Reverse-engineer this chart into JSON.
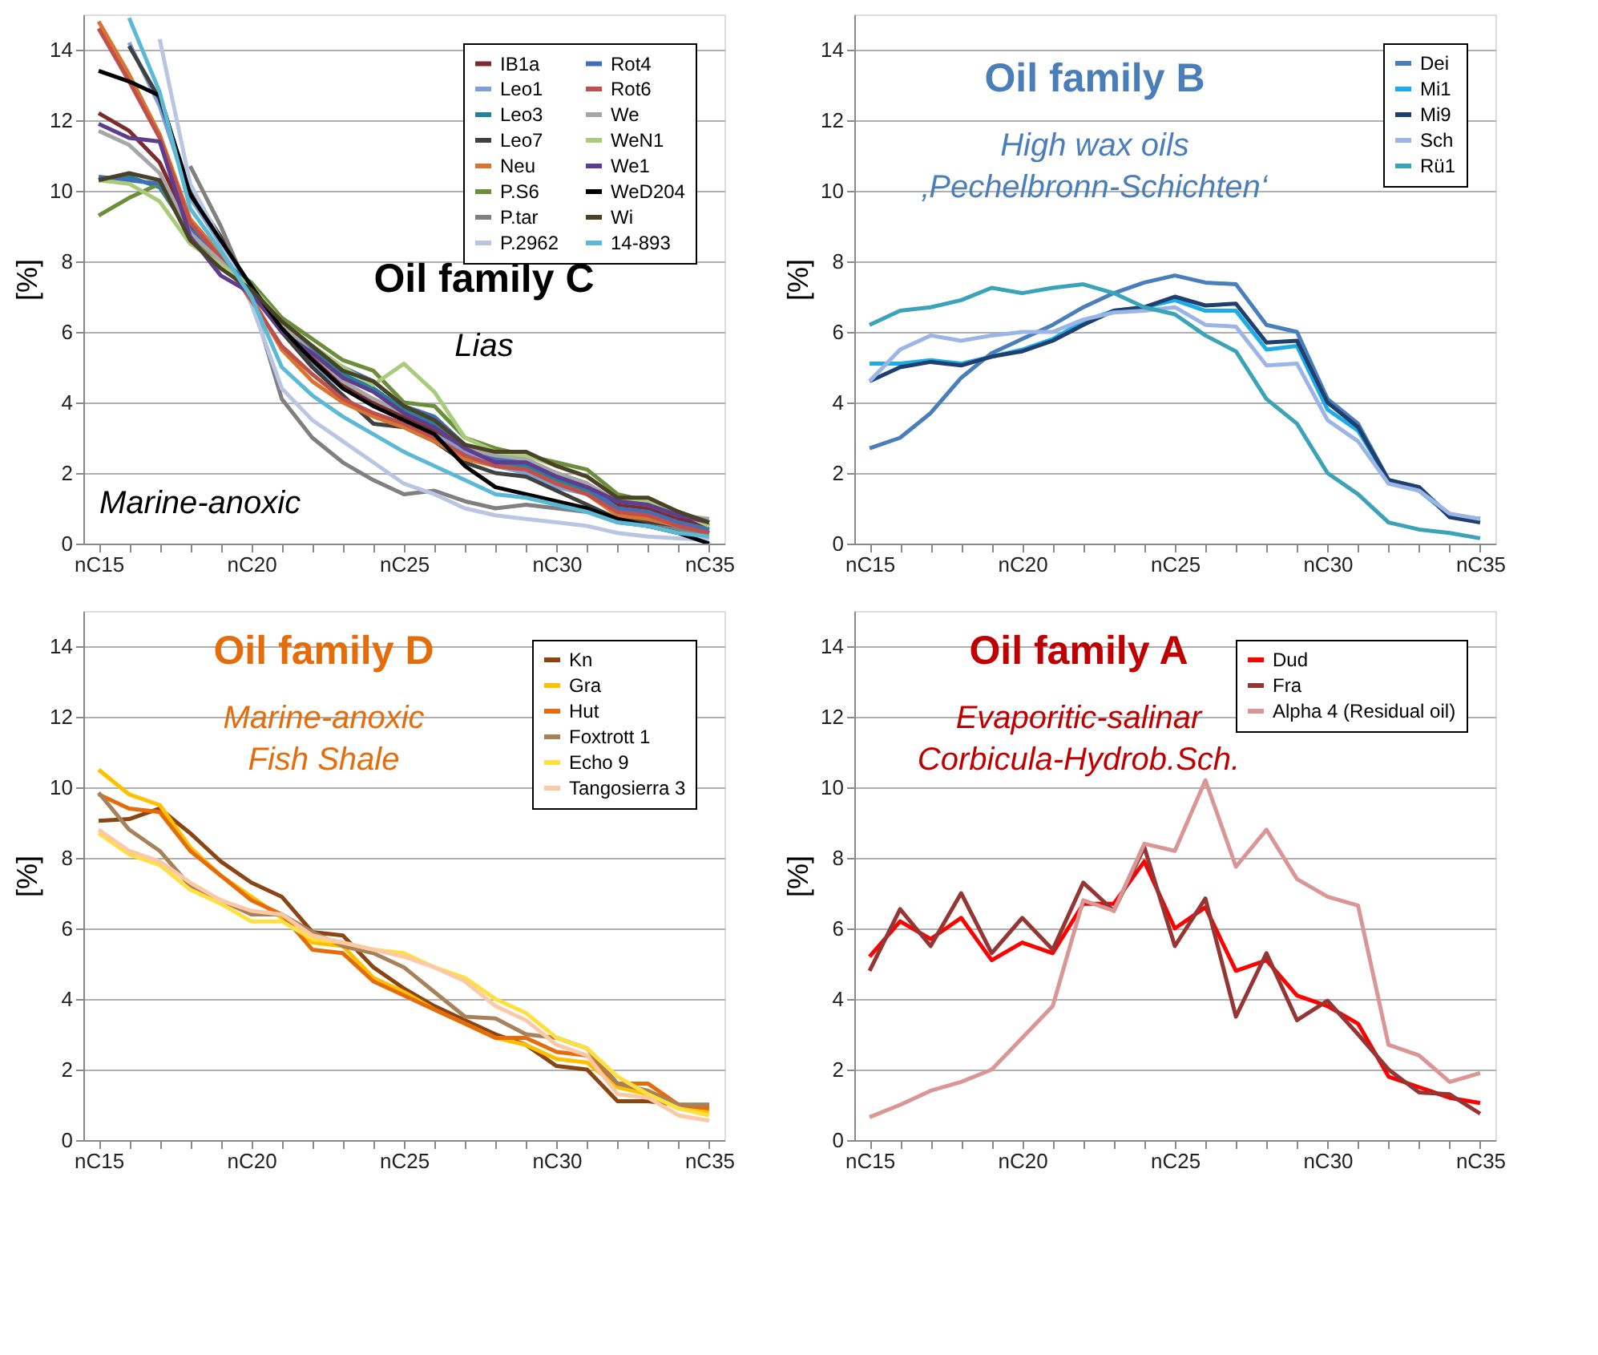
{
  "chart_data": [
    {
      "type": "line",
      "title": "Oil family C",
      "subtitle": "Lias",
      "ylabel": "[%]",
      "annotations": [
        "Marine-anoxic"
      ],
      "categories": [
        "nC15",
        null,
        null,
        null,
        null,
        "nC20",
        null,
        null,
        null,
        null,
        "nC25",
        null,
        null,
        null,
        null,
        "nC30",
        null,
        null,
        null,
        null,
        "nC35"
      ],
      "ylim": [
        0,
        15
      ],
      "yticks": [
        0,
        2,
        4,
        6,
        8,
        10,
        12,
        14
      ],
      "grid": "y",
      "legend": "top right",
      "series": [
        {
          "name": "IB1a",
          "color": "#7b2c2c",
          "values": [
            12.2,
            11.7,
            10.8,
            9.0,
            8.0,
            7.2,
            6.2,
            5.3,
            4.5,
            4.0,
            3.6,
            3.2,
            2.7,
            2.4,
            2.3,
            2.0,
            1.7,
            1.1,
            1.0,
            0.7,
            0.5
          ]
        },
        {
          "name": "Leo1",
          "color": "#7f9fd5",
          "values": [
            null,
            14.2,
            12.4,
            9.8,
            8.5,
            7.2,
            6.0,
            5.1,
            4.4,
            3.9,
            3.5,
            3.1,
            2.6,
            2.2,
            2.0,
            1.6,
            1.4,
            0.9,
            0.8,
            0.5,
            0.3
          ]
        },
        {
          "name": "Leo3",
          "color": "#23829a",
          "values": [
            10.3,
            10.4,
            10.1,
            8.8,
            8.0,
            7.2,
            6.2,
            5.5,
            4.8,
            4.4,
            3.8,
            3.4,
            2.7,
            2.3,
            2.2,
            1.8,
            1.5,
            0.9,
            0.8,
            0.6,
            0.4
          ]
        },
        {
          "name": "Leo7",
          "color": "#404040",
          "values": [
            null,
            14.1,
            12.6,
            10.0,
            8.7,
            7.2,
            6.0,
            5.0,
            4.2,
            3.4,
            3.3,
            2.9,
            2.3,
            2.0,
            1.9,
            1.5,
            1.1,
            0.7,
            0.6,
            0.5,
            0.3
          ]
        },
        {
          "name": "Neu",
          "color": "#d7772f",
          "values": [
            14.8,
            13.3,
            11.6,
            9.2,
            8.2,
            7.0,
            5.5,
            4.6,
            4.0,
            3.6,
            3.3,
            2.9,
            2.4,
            2.2,
            2.1,
            1.7,
            1.4,
            0.8,
            0.7,
            0.5,
            0.3
          ]
        },
        {
          "name": "P.S6",
          "color": "#6b8e3a",
          "values": [
            9.3,
            9.8,
            10.2,
            8.7,
            8.0,
            7.4,
            6.4,
            5.8,
            5.2,
            4.9,
            4.0,
            3.9,
            3.0,
            2.7,
            2.5,
            2.3,
            2.1,
            1.4,
            1.2,
            0.9,
            0.5
          ]
        },
        {
          "name": "P.tar",
          "color": "#808080",
          "values": [
            null,
            null,
            null,
            10.7,
            9.0,
            7.0,
            4.1,
            3.0,
            2.3,
            1.8,
            1.4,
            1.5,
            1.2,
            1.0,
            1.1,
            1.0,
            0.9,
            0.6,
            0.5,
            0.4,
            0.3
          ]
        },
        {
          "name": "P.2962",
          "color": "#b8c6e2",
          "values": [
            null,
            null,
            14.3,
            10.2,
            8.6,
            6.8,
            4.4,
            3.5,
            2.9,
            2.3,
            1.7,
            1.4,
            1.0,
            0.8,
            0.7,
            0.6,
            0.5,
            0.3,
            0.2,
            0.15,
            0.1
          ]
        },
        {
          "name": "Rot4",
          "color": "#3f6fb8",
          "values": [
            10.4,
            10.3,
            10.2,
            8.9,
            8.1,
            7.3,
            6.3,
            5.6,
            5.0,
            4.6,
            3.9,
            3.6,
            2.8,
            2.4,
            2.3,
            1.9,
            1.6,
            1.0,
            0.9,
            0.6,
            0.4
          ]
        },
        {
          "name": "Rot6",
          "color": "#c0504d",
          "values": [
            14.6,
            13.1,
            11.5,
            9.1,
            8.1,
            6.9,
            5.6,
            4.8,
            4.1,
            3.7,
            3.4,
            3.0,
            2.5,
            2.2,
            2.1,
            1.7,
            1.4,
            0.9,
            0.8,
            0.5,
            0.3
          ]
        },
        {
          "name": "We",
          "color": "#a6a6a6",
          "values": [
            11.7,
            11.3,
            10.5,
            8.8,
            8.0,
            7.1,
            6.2,
            5.4,
            4.6,
            4.1,
            3.7,
            3.3,
            2.7,
            2.5,
            2.4,
            2.0,
            1.7,
            1.2,
            1.1,
            0.8,
            0.7
          ]
        },
        {
          "name": "WeN1",
          "color": "#a8cc7a",
          "values": [
            10.3,
            10.2,
            9.7,
            8.5,
            7.9,
            7.3,
            6.3,
            5.6,
            5.0,
            4.5,
            5.1,
            4.3,
            3.0,
            2.6,
            2.5,
            2.2,
            1.9,
            1.3,
            1.2,
            0.9,
            0.5
          ]
        },
        {
          "name": "We1",
          "color": "#5e3c8e",
          "values": [
            11.9,
            11.5,
            11.4,
            8.7,
            7.6,
            7.1,
            6.0,
            5.4,
            4.7,
            4.3,
            3.7,
            3.3,
            2.7,
            2.3,
            2.3,
            1.9,
            1.6,
            1.2,
            1.1,
            0.8,
            0.6
          ]
        },
        {
          "name": "WeD204",
          "color": "#000000",
          "values": [
            13.4,
            13.1,
            12.7,
            9.9,
            8.6,
            7.3,
            6.1,
            5.2,
            4.4,
            3.9,
            3.5,
            3.1,
            2.2,
            1.6,
            1.4,
            1.2,
            1.0,
            0.7,
            0.5,
            0.3,
            0.0
          ]
        },
        {
          "name": "Wi",
          "color": "#4a4226",
          "values": [
            10.3,
            10.5,
            10.3,
            8.6,
            7.8,
            7.2,
            6.3,
            5.6,
            4.9,
            4.6,
            3.9,
            3.5,
            2.8,
            2.6,
            2.6,
            2.2,
            1.9,
            1.3,
            1.3,
            0.9,
            0.6
          ]
        },
        {
          "name": "14-893",
          "color": "#5ab9d4",
          "values": [
            null,
            14.9,
            12.8,
            9.5,
            8.3,
            7.0,
            5.0,
            4.2,
            3.6,
            3.1,
            2.6,
            2.2,
            1.8,
            1.4,
            1.3,
            1.1,
            0.9,
            0.6,
            0.5,
            0.3,
            0.2
          ]
        }
      ]
    },
    {
      "type": "line",
      "title": "Oil family B",
      "subtitle": "High wax oils\n‚Pechelbronn-Schichten‘",
      "ylabel": "[%]",
      "categories": [
        "nC15",
        null,
        null,
        null,
        null,
        "nC20",
        null,
        null,
        null,
        null,
        "nC25",
        null,
        null,
        null,
        null,
        "nC30",
        null,
        null,
        null,
        null,
        "nC35"
      ],
      "ylim": [
        0,
        15
      ],
      "yticks": [
        0,
        2,
        4,
        6,
        8,
        10,
        12,
        14
      ],
      "grid": "y",
      "legend": "top right",
      "series": [
        {
          "name": "Dei",
          "color": "#4a7ebb",
          "values": [
            2.7,
            3.0,
            3.7,
            4.7,
            5.4,
            5.8,
            6.2,
            6.7,
            7.1,
            7.4,
            7.6,
            7.4,
            7.35,
            6.2,
            6.0,
            4.1,
            3.4,
            1.8,
            1.6,
            0.8,
            0.7
          ]
        },
        {
          "name": "Mi1",
          "color": "#1cace8",
          "values": [
            5.1,
            5.1,
            5.2,
            5.1,
            5.3,
            5.5,
            5.8,
            6.3,
            6.6,
            6.7,
            6.9,
            6.6,
            6.6,
            5.5,
            5.6,
            3.8,
            3.2,
            1.8,
            1.5,
            0.8,
            0.7
          ]
        },
        {
          "name": "Mi9",
          "color": "#1f3f6e",
          "values": [
            4.6,
            5.0,
            5.15,
            5.05,
            5.3,
            5.45,
            5.75,
            6.2,
            6.6,
            6.7,
            7.0,
            6.75,
            6.8,
            5.7,
            5.75,
            4.0,
            3.3,
            1.8,
            1.6,
            0.75,
            0.6
          ]
        },
        {
          "name": "Sch",
          "color": "#9bb5e6",
          "values": [
            4.6,
            5.5,
            5.9,
            5.75,
            5.9,
            6.0,
            6.0,
            6.35,
            6.55,
            6.6,
            6.7,
            6.2,
            6.15,
            5.05,
            5.1,
            3.5,
            2.9,
            1.7,
            1.5,
            0.85,
            0.7
          ]
        },
        {
          "name": "Rü1",
          "color": "#3aa3b8",
          "values": [
            6.2,
            6.6,
            6.7,
            6.9,
            7.25,
            7.1,
            7.25,
            7.35,
            7.1,
            6.7,
            6.5,
            5.9,
            5.45,
            4.1,
            3.4,
            2.0,
            1.4,
            0.6,
            0.4,
            0.3,
            0.15
          ]
        }
      ]
    },
    {
      "type": "line",
      "title": "Oil family D",
      "subtitle": "Marine-anoxic\nFish Shale",
      "ylabel": "[%]",
      "categories": [
        "nC15",
        null,
        null,
        null,
        null,
        "nC20",
        null,
        null,
        null,
        null,
        "nC25",
        null,
        null,
        null,
        null,
        "nC30",
        null,
        null,
        null,
        null,
        "nC35"
      ],
      "ylim": [
        0,
        15
      ],
      "yticks": [
        0,
        2,
        4,
        6,
        8,
        10,
        12,
        14
      ],
      "grid": "y",
      "legend": "top right",
      "series": [
        {
          "name": "Kn",
          "color": "#8b4513",
          "values": [
            9.05,
            9.1,
            9.4,
            8.7,
            7.9,
            7.3,
            6.9,
            5.9,
            5.8,
            4.9,
            4.3,
            3.8,
            3.4,
            3.0,
            2.7,
            2.1,
            2.0,
            1.1,
            1.1,
            1.0,
            1.0
          ]
        },
        {
          "name": "Gra",
          "color": "#ffc000",
          "values": [
            10.5,
            9.8,
            9.5,
            8.3,
            7.5,
            6.9,
            6.3,
            5.6,
            5.5,
            4.6,
            4.2,
            3.7,
            3.3,
            2.9,
            2.7,
            2.3,
            2.2,
            1.5,
            1.3,
            0.9,
            0.8
          ]
        },
        {
          "name": "Hut",
          "color": "#e46c0a",
          "values": [
            9.8,
            9.4,
            9.3,
            8.2,
            7.5,
            6.8,
            6.4,
            5.4,
            5.3,
            4.5,
            4.1,
            3.7,
            3.3,
            2.9,
            2.9,
            2.5,
            2.4,
            1.6,
            1.6,
            1.0,
            0.9
          ]
        },
        {
          "name": "Foxtrott 1",
          "color": "#a6815a",
          "values": [
            9.85,
            8.8,
            8.2,
            7.2,
            6.8,
            6.4,
            6.4,
            5.9,
            5.5,
            5.3,
            4.9,
            4.2,
            3.5,
            3.45,
            3.0,
            2.9,
            2.6,
            1.6,
            1.4,
            1.0,
            1.0
          ]
        },
        {
          "name": "Echo 9",
          "color": "#ffe040",
          "values": [
            8.7,
            8.1,
            7.8,
            7.1,
            6.7,
            6.2,
            6.2,
            5.7,
            5.6,
            5.4,
            5.3,
            4.9,
            4.6,
            4.0,
            3.6,
            2.9,
            2.6,
            1.8,
            1.3,
            0.9,
            0.7
          ]
        },
        {
          "name": "Tangosierra 3",
          "color": "#fbc9a8",
          "values": [
            8.8,
            8.2,
            7.9,
            7.3,
            6.8,
            6.5,
            6.4,
            5.8,
            5.6,
            5.4,
            5.2,
            4.9,
            4.5,
            3.8,
            3.4,
            2.7,
            2.4,
            1.3,
            1.2,
            0.7,
            0.55
          ]
        }
      ]
    },
    {
      "type": "line",
      "title": "Oil family A",
      "subtitle": "Evaporitic-salinar\nCorbicula-Hydrob.Sch.",
      "ylabel": "[%]",
      "categories": [
        "nC15",
        null,
        null,
        null,
        null,
        "nC20",
        null,
        null,
        null,
        null,
        "nC25",
        null,
        null,
        null,
        null,
        "nC30",
        null,
        null,
        null,
        null,
        "nC35"
      ],
      "ylim": [
        0,
        15
      ],
      "yticks": [
        0,
        2,
        4,
        6,
        8,
        10,
        12,
        14
      ],
      "grid": "y",
      "legend": "top right",
      "series": [
        {
          "name": "Dud",
          "color": "#ff0000",
          "values": [
            5.2,
            6.2,
            5.7,
            6.3,
            5.1,
            5.6,
            5.3,
            6.7,
            6.7,
            7.9,
            6.0,
            6.6,
            4.8,
            5.1,
            4.1,
            3.8,
            3.3,
            1.8,
            1.5,
            1.2,
            1.05
          ]
        },
        {
          "name": "Fra",
          "color": "#943634",
          "values": [
            4.8,
            6.55,
            5.5,
            7.0,
            5.3,
            6.3,
            5.4,
            7.3,
            6.5,
            8.3,
            5.5,
            6.85,
            3.5,
            5.3,
            3.4,
            3.95,
            3.0,
            2.0,
            1.35,
            1.3,
            0.75
          ]
        },
        {
          "name": "Alpha 4 (Residual oil)",
          "color": "#d99694",
          "values": [
            0.65,
            1.0,
            1.4,
            1.65,
            2.0,
            2.9,
            3.8,
            6.8,
            6.5,
            8.4,
            8.2,
            10.2,
            7.75,
            8.8,
            7.4,
            6.9,
            6.65,
            2.7,
            2.4,
            1.65,
            1.9
          ]
        }
      ]
    }
  ]
}
